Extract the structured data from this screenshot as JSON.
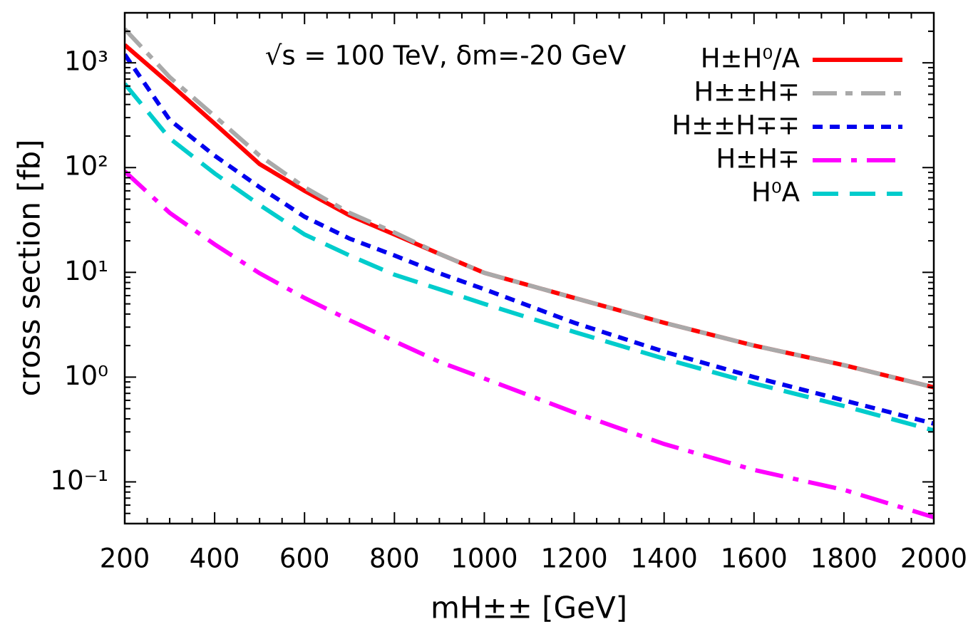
{
  "chart_data": {
    "type": "line",
    "annotation": "√s = 100 TeV, δm=-20 GeV",
    "xlabel": "mH±± [GeV]",
    "ylabel": "cross section [fb]",
    "x": [
      200,
      300,
      400,
      500,
      600,
      700,
      800,
      900,
      1000,
      1200,
      1400,
      1600,
      1800,
      2000
    ],
    "series": [
      {
        "name": "H±H⁰/A",
        "color": "#ff0000",
        "dash": "none",
        "values": [
          1480,
          630,
          263,
          108,
          60,
          35,
          23,
          15,
          9.9,
          5.7,
          3.3,
          2.0,
          1.3,
          0.8
        ]
      },
      {
        "name": "H±±H∓",
        "color": "#a9a9a9",
        "dash": "34 12 10 12",
        "values": [
          2100,
          730,
          310,
          130,
          65,
          37,
          24,
          15,
          9.9,
          5.7,
          3.3,
          2.0,
          1.3,
          0.8
        ]
      },
      {
        "name": "H±±H∓∓",
        "color": "#0000ee",
        "dash": "14 10",
        "values": [
          1200,
          285,
          130,
          65,
          34,
          21,
          14.5,
          9.8,
          6.9,
          3.3,
          1.75,
          1.0,
          0.6,
          0.36
        ]
      },
      {
        "name": "H±H∓",
        "color": "#ff00ff",
        "dash": "40 14 8 14",
        "values": [
          92,
          37,
          18.5,
          9.8,
          5.7,
          3.5,
          2.2,
          1.4,
          0.97,
          0.46,
          0.23,
          0.13,
          0.084,
          0.046
        ]
      },
      {
        "name": "H⁰A",
        "color": "#00cccc",
        "dash": "36 16",
        "values": [
          630,
          190,
          88,
          44,
          23,
          14.5,
          9.5,
          6.9,
          5,
          2.7,
          1.5,
          0.87,
          0.53,
          0.31
        ]
      }
    ],
    "xlim": [
      200,
      2000
    ],
    "xticks": [
      200,
      400,
      600,
      800,
      1000,
      1200,
      1400,
      1600,
      1800,
      2000
    ],
    "ylim": [
      0.04,
      3000
    ],
    "yticks": [
      {
        "value": 0.1,
        "label": "10⁻¹"
      },
      {
        "value": 1,
        "label": "10⁰"
      },
      {
        "value": 10,
        "label": "10¹"
      },
      {
        "value": 100,
        "label": "10²"
      },
      {
        "value": 1000,
        "label": "10³"
      }
    ],
    "log_y": true,
    "legend": "upper right"
  }
}
